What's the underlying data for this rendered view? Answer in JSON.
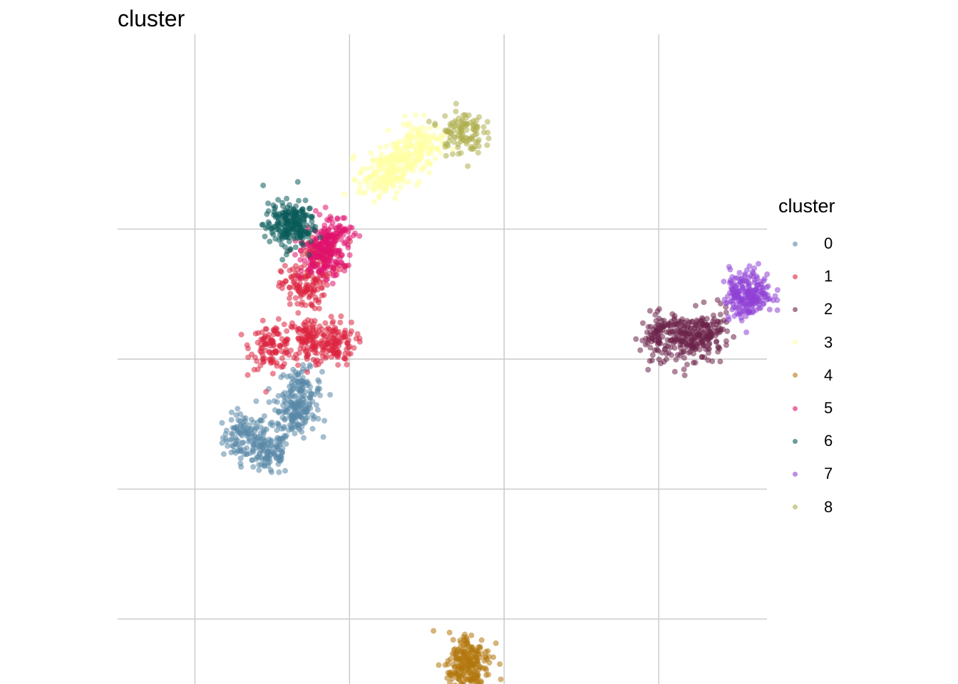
{
  "chart_data": {
    "type": "scatter",
    "title": "cluster",
    "xlabel": "",
    "ylabel": "",
    "xlim": [
      -7.5,
      13.5
    ],
    "ylim": [
      -10,
      10
    ],
    "grid": true,
    "x_ticks": [
      -5,
      0,
      5,
      10
    ],
    "y_ticks": [
      -8,
      -4,
      0,
      4
    ],
    "tick_labels_visible": false,
    "legend": {
      "title": "cluster",
      "position": "right"
    },
    "series": [
      {
        "name": "0",
        "color": "#5A89A8",
        "centers": [
          [
            -3.4,
            -2.4
          ],
          [
            -1.8,
            -1.7
          ],
          [
            -1.6,
            -1.0
          ],
          [
            -2.6,
            -2.9
          ]
        ]
      },
      {
        "name": "1",
        "color": "#DC2440",
        "centers": [
          [
            -2.5,
            0.4
          ],
          [
            -1.3,
            0.6
          ],
          [
            -0.5,
            0.5
          ],
          [
            -1.5,
            2.2
          ],
          [
            -0.9,
            3.2
          ]
        ]
      },
      {
        "name": "2",
        "color": "#6B2249",
        "centers": [
          [
            11.0,
            0.6
          ],
          [
            10.1,
            0.7
          ],
          [
            11.6,
            0.8
          ]
        ]
      },
      {
        "name": "3",
        "color": "#FFFFA2",
        "centers": [
          [
            2.3,
            6.6
          ],
          [
            1.6,
            6.1
          ],
          [
            1.0,
            5.6
          ]
        ]
      },
      {
        "name": "4",
        "color": "#B2760D",
        "centers": [
          [
            3.8,
            -9.6
          ],
          [
            3.9,
            -9.1
          ]
        ]
      },
      {
        "name": "5",
        "color": "#E0136F",
        "centers": [
          [
            -0.6,
            3.8
          ],
          [
            -0.9,
            3.1
          ]
        ]
      },
      {
        "name": "6",
        "color": "#0A5B5A",
        "centers": [
          [
            -2.1,
            4.1
          ],
          [
            -1.8,
            4.2
          ]
        ]
      },
      {
        "name": "7",
        "color": "#9042D6",
        "centers": [
          [
            13.0,
            2.1
          ],
          [
            12.8,
            1.9
          ]
        ]
      },
      {
        "name": "8",
        "color": "#AFAF4F",
        "centers": [
          [
            3.6,
            7.0
          ]
        ]
      }
    ]
  }
}
